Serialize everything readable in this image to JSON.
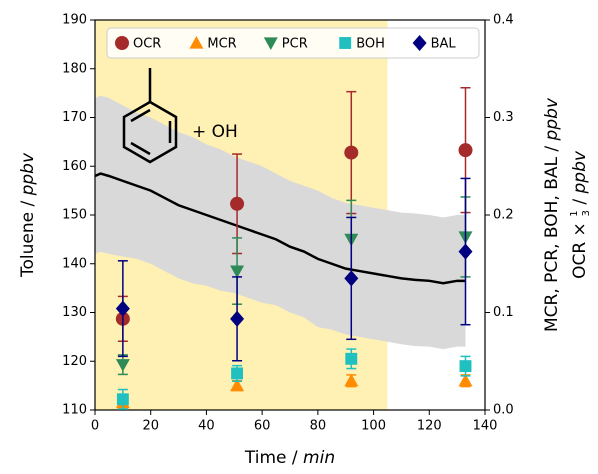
{
  "chart_data": {
    "type": "line",
    "xlabel": [
      "Time / ",
      "min"
    ],
    "ylabel": [
      "Toluene / ",
      "ppbv"
    ],
    "y2label": [
      [
        "MCR, PCR, BOH, BAL / ",
        "ppbv"
      ],
      [
        "OCR × ",
        "1",
        "3",
        " / ",
        "ppbv"
      ]
    ],
    "annotation": "+ OH",
    "xlim": [
      0,
      140
    ],
    "xticks": [
      0,
      20,
      40,
      60,
      80,
      100,
      120,
      140
    ],
    "ylim": [
      110,
      190
    ],
    "yticks": [
      110,
      120,
      130,
      140,
      150,
      160,
      170,
      180,
      190
    ],
    "y2lim": [
      0,
      0.4
    ],
    "y2ticks": [
      {
        "value": 0,
        "label": "0.0"
      },
      0.1,
      0.2,
      0.3,
      0.4
    ],
    "shade": {
      "x": [
        0,
        105
      ],
      "color": "#fff0b3"
    },
    "toluene": {
      "color": "#000000",
      "band_color": "#d9d9d9",
      "x": [
        0,
        2,
        5,
        10,
        15,
        20,
        25,
        30,
        35,
        40,
        45,
        50,
        55,
        60,
        65,
        70,
        75,
        80,
        85,
        90,
        95,
        100,
        105,
        110,
        115,
        120,
        125,
        130,
        133
      ],
      "values": [
        158,
        158.5,
        158,
        157,
        156,
        155,
        153.5,
        152,
        151,
        150,
        149,
        148,
        147,
        146,
        145,
        143.5,
        142.5,
        141,
        140,
        139,
        138.5,
        138,
        137.5,
        137,
        136.7,
        136.5,
        136,
        136.5,
        136.5
      ],
      "upper": [
        174,
        174.5,
        174,
        172.5,
        171,
        170,
        168.5,
        167,
        166,
        164.5,
        163.5,
        162,
        161,
        160,
        158.5,
        157,
        156,
        155,
        153.5,
        152.5,
        152,
        151.5,
        151,
        150.5,
        150.3,
        150,
        149.5,
        150,
        150
      ],
      "lower": [
        142,
        142.5,
        142,
        141.5,
        141,
        140,
        138.5,
        137,
        136,
        135.5,
        134.5,
        134,
        133,
        132,
        131.5,
        130,
        129,
        127,
        126.5,
        125.5,
        125,
        124.5,
        124,
        123.5,
        123.1,
        123,
        122.5,
        123,
        123
      ]
    },
    "points_x": [
      10,
      51,
      92,
      133
    ],
    "series": [
      {
        "name": "OCR",
        "color": "#a52a2a",
        "marker": "circle",
        "axis": "y2",
        "values": [
          0.0935,
          0.2115,
          0.264,
          0.2665
        ],
        "errors": [
          0.023,
          0.051,
          0.0625,
          0.064
        ]
      },
      {
        "name": "MCR",
        "color": "#ff8c00",
        "marker": "triangle-up",
        "axis": "y2",
        "values": [
          0.0075,
          0.025,
          0.03,
          0.03
        ],
        "errors": [
          0.005,
          0.005,
          0.006,
          0.006
        ]
      },
      {
        "name": "PCR",
        "color": "#2e8b57",
        "marker": "triangle-down",
        "axis": "y2",
        "values": [
          0.0465,
          0.1425,
          0.175,
          0.1775
        ],
        "errors": [
          0.01,
          0.034,
          0.04,
          0.041
        ]
      },
      {
        "name": "BOH",
        "color": "#20c0c0",
        "marker": "square",
        "axis": "y2",
        "values": [
          0.011,
          0.0375,
          0.0525,
          0.045
        ],
        "errors": [
          0.01,
          0.008,
          0.01,
          0.01
        ]
      },
      {
        "name": "BAL",
        "color": "#000080",
        "marker": "diamond",
        "axis": "y2",
        "values": [
          0.104,
          0.0935,
          0.135,
          0.1625
        ],
        "errors": [
          0.049,
          0.043,
          0.0625,
          0.075
        ]
      }
    ],
    "legend": "upper center"
  }
}
